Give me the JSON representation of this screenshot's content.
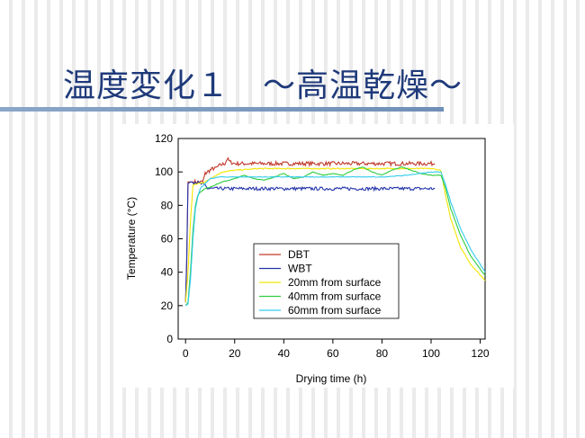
{
  "slide": {
    "title": "温度変化１　～高温乾燥～"
  },
  "chart_data": {
    "type": "line",
    "title": "",
    "xlabel": "Drying time (h)",
    "ylabel": "Temperature (°C)",
    "xlim": [
      -3,
      122
    ],
    "ylim": [
      0,
      120
    ],
    "xticks": [
      0,
      20,
      40,
      60,
      80,
      100,
      120
    ],
    "yticks": [
      0,
      20,
      40,
      60,
      80,
      100,
      120
    ],
    "grid": false,
    "legend_position": "center",
    "series": [
      {
        "name": "DBT",
        "color": "#c0392b",
        "noise": 1.2,
        "x": [
          0,
          0.5,
          1,
          2,
          3,
          5,
          7,
          8,
          9,
          10,
          11,
          12,
          14,
          16,
          17,
          18,
          20,
          25,
          30,
          40,
          50,
          60,
          70,
          80,
          90,
          100,
          101.5
        ],
        "y": [
          22,
          45,
          94,
          94,
          94,
          94,
          94,
          99,
          100,
          101,
          102,
          102,
          104,
          105,
          108,
          106,
          105,
          105,
          105,
          105,
          105,
          105,
          105,
          105,
          105,
          105,
          105
        ]
      },
      {
        "name": "WBT",
        "color": "#2233aa",
        "noise": 1.0,
        "x": [
          0,
          0.5,
          1,
          2,
          4,
          6,
          8,
          9,
          10,
          20,
          40,
          60,
          80,
          100,
          101.5
        ],
        "y": [
          22,
          50,
          93,
          94,
          94,
          93,
          92,
          90,
          90,
          90,
          90,
          90,
          90,
          90,
          90
        ]
      },
      {
        "name": "20mm from surface",
        "color": "#f2e600",
        "noise": 0.3,
        "x": [
          0,
          1,
          2,
          3,
          5,
          8,
          10,
          15,
          20,
          30,
          50,
          70,
          90,
          100,
          104,
          106,
          108,
          112,
          116,
          122
        ],
        "y": [
          22,
          40,
          70,
          92,
          93,
          94,
          96,
          100,
          101,
          102,
          102,
          102,
          102,
          102,
          101,
          85,
          72,
          55,
          45,
          35
        ]
      },
      {
        "name": "40mm from surface",
        "color": "#2ecc40",
        "noise": 0.2,
        "x": [
          0,
          1,
          2,
          3,
          4,
          5,
          6,
          8,
          10,
          15,
          20,
          24,
          28,
          32,
          36,
          40,
          44,
          48,
          52,
          56,
          60,
          64,
          68,
          72,
          76,
          80,
          84,
          88,
          92,
          96,
          100,
          104,
          106,
          108,
          112,
          116,
          122
        ],
        "y": [
          20,
          22,
          40,
          65,
          80,
          86,
          88,
          90,
          91,
          94,
          96,
          98,
          96,
          95,
          97,
          99,
          96,
          97,
          100,
          98,
          99,
          98,
          101,
          103,
          100,
          98,
          101,
          103,
          101,
          99,
          98,
          98,
          90,
          78,
          62,
          50,
          38
        ]
      },
      {
        "name": "60mm from surface",
        "color": "#33ccee",
        "noise": 0.2,
        "x": [
          0,
          1,
          2,
          3,
          4,
          5,
          6,
          8,
          10,
          14,
          18,
          20,
          30,
          40,
          50,
          60,
          70,
          80,
          90,
          100,
          104,
          106,
          108,
          112,
          116,
          122
        ],
        "y": [
          20,
          21,
          35,
          60,
          78,
          85,
          90,
          93,
          96,
          97,
          97,
          97,
          97,
          97,
          97,
          97,
          97,
          97,
          98,
          100,
          100,
          92,
          82,
          66,
          54,
          40
        ]
      }
    ]
  }
}
